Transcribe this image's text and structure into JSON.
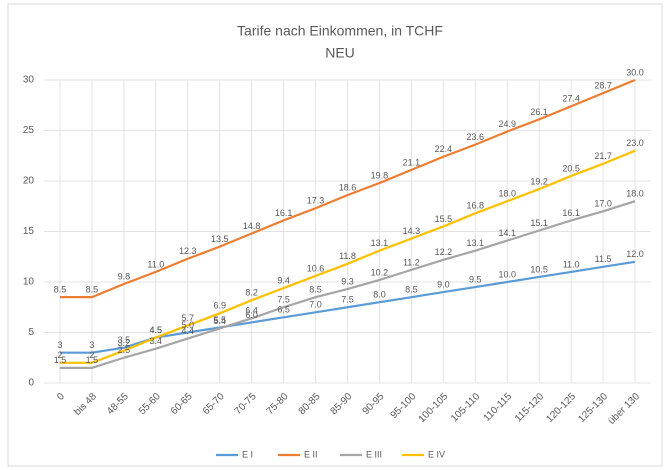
{
  "chart_data": {
    "type": "line",
    "title": "Tarife nach Einkommen, in TCHF",
    "subtitle": "NEU",
    "categories": [
      "0",
      "bis 48",
      "48-55",
      "55-60",
      "60-65",
      "65-70",
      "70-75",
      "75-80",
      "80-85",
      "85-90",
      "90-95",
      "95-100",
      "100-105",
      "105-110",
      "110-115",
      "115-120",
      "120-125",
      "125-130",
      "über 130"
    ],
    "series": [
      {
        "name": "E I",
        "color": "#5b9bd5",
        "values": [
          3,
          3,
          3.5,
          4.5,
          5.0,
          5.5,
          6.0,
          6.5,
          7.0,
          7.5,
          8.0,
          8.5,
          9.0,
          9.5,
          10.0,
          10.5,
          11.0,
          11.5,
          12.0
        ],
        "value_labels": [
          "3",
          "3",
          "3.5",
          "4.5",
          "5.0",
          "5.5",
          "6.0",
          "6.5",
          "7.0",
          "7.5",
          "8.0",
          "8.5",
          "9.0",
          "9.5",
          "10.0",
          "10.5",
          "11.0",
          "11.5",
          "12.0"
        ]
      },
      {
        "name": "E II",
        "color": "#ed7d31",
        "values": [
          8.5,
          8.5,
          9.8,
          11.0,
          12.3,
          13.5,
          14.8,
          16.1,
          17.3,
          18.6,
          19.8,
          21.1,
          22.4,
          23.6,
          24.9,
          26.1,
          27.4,
          28.7,
          30.0
        ],
        "value_labels": [
          "8.5",
          "8.5",
          "9.8",
          "11.0",
          "12.3",
          "13.5",
          "14.8",
          "16.1",
          "17.3",
          "18.6",
          "19.8",
          "21.1",
          "22.4",
          "23.6",
          "24.9",
          "26.1",
          "27.4",
          "28.7",
          "30.0"
        ]
      },
      {
        "name": "E III",
        "color": "#a5a5a5",
        "values": [
          1.5,
          1.5,
          2.5,
          3.4,
          4.4,
          5.4,
          6.4,
          7.5,
          8.5,
          9.3,
          10.2,
          11.2,
          12.2,
          13.1,
          14.1,
          15.1,
          16.1,
          17.0,
          18.0
        ],
        "value_labels": [
          "1.5",
          "1.5",
          "2.5",
          "3.4",
          "4.4",
          "5.4",
          "6.4",
          "7.5",
          "8.5",
          "9.3",
          "10.2",
          "11.2",
          "12.2",
          "13.1",
          "14.1",
          "15.1",
          "16.1",
          "17.0",
          "18.0"
        ]
      },
      {
        "name": "E IV",
        "color": "#ffc000",
        "values": [
          2,
          2,
          3.2,
          4.5,
          5.7,
          6.9,
          8.2,
          9.4,
          10.6,
          11.8,
          13.1,
          14.3,
          15.5,
          16.8,
          18.0,
          19.2,
          20.5,
          21.7,
          23.0
        ],
        "value_labels": [
          "2",
          "2",
          "3.2",
          "4.5",
          "5.7",
          "6.9",
          "8.2",
          "9.4",
          "10.6",
          "11.8",
          "13.1",
          "14.3",
          "15.5",
          "16.8",
          "18.0",
          "19.2",
          "20.5",
          "21.7",
          "23.0"
        ]
      }
    ],
    "ylim": [
      0,
      30
    ],
    "yticks": [
      0,
      5,
      10,
      15,
      20,
      25,
      30
    ],
    "grid": true,
    "legend": "bottom"
  }
}
